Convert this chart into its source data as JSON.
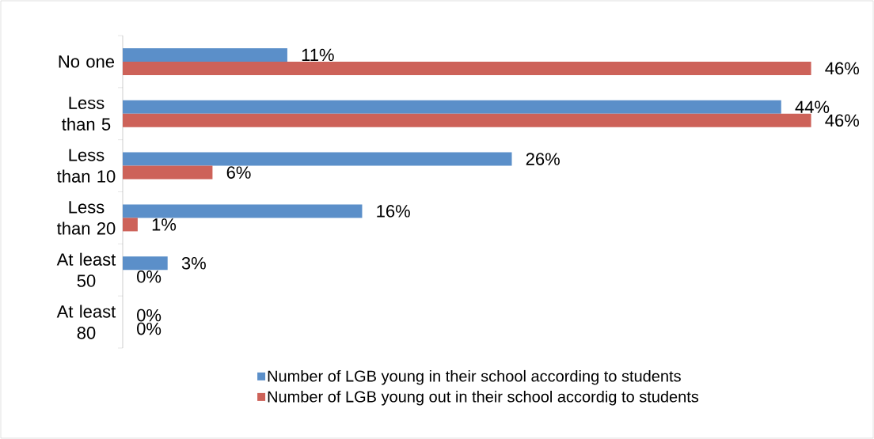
{
  "chart_data": {
    "type": "bar",
    "orientation": "horizontal",
    "legend": "bottom",
    "categories": [
      "No one",
      "Less than 5",
      "Less than 10",
      "Less than 20",
      "At least 50",
      "At least 80"
    ],
    "series": [
      {
        "name": "Number of LGB young in their school according to students",
        "color": "#5b8fc9",
        "values": [
          11,
          44,
          26,
          16,
          3,
          0
        ],
        "value_labels": [
          "11%",
          "44%",
          "26%",
          "16%",
          "3%",
          "0%"
        ]
      },
      {
        "name": "Number of LGB young out in their school accordig to students",
        "color": "#cd6259",
        "values": [
          46,
          46,
          6,
          1,
          0,
          0
        ],
        "value_labels": [
          "46%",
          "46%",
          "6%",
          "1%",
          "0%",
          "0%"
        ]
      }
    ]
  }
}
